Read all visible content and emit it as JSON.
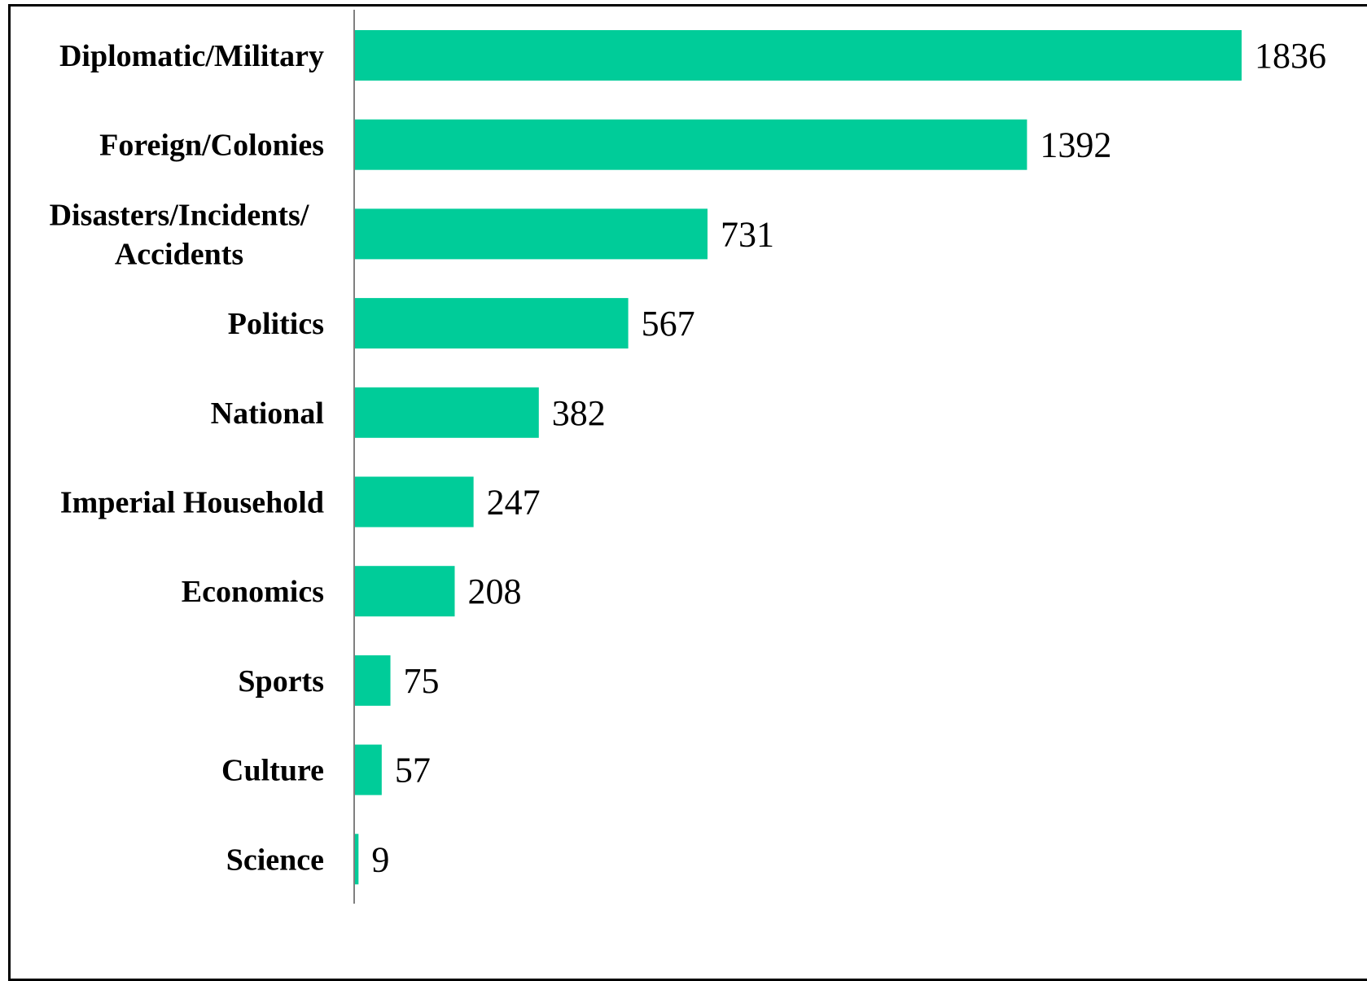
{
  "chart_data": {
    "type": "bar",
    "orientation": "horizontal",
    "categories": [
      "Diplomatic/Military",
      "Foreign/Colonies",
      "Disasters/Incidents/ Accidents",
      "Politics",
      "National",
      "Imperial Household",
      "Economics",
      "Sports",
      "Culture",
      "Science"
    ],
    "category_lines": [
      [
        "Diplomatic/Military"
      ],
      [
        "Foreign/Colonies"
      ],
      [
        "Disasters/Incidents/",
        "Accidents"
      ],
      [
        "Politics"
      ],
      [
        "National"
      ],
      [
        "Imperial Household"
      ],
      [
        "Economics"
      ],
      [
        "Sports"
      ],
      [
        "Culture"
      ],
      [
        "Science"
      ]
    ],
    "values": [
      1836,
      1392,
      731,
      567,
      382,
      247,
      208,
      75,
      57,
      9
    ],
    "data_labels": [
      "1836",
      "1392",
      "731",
      "567",
      "382",
      "247",
      "208",
      "75",
      "57",
      "9"
    ],
    "title": "",
    "xlabel": "",
    "ylabel": "",
    "xlim": [
      0,
      1836
    ],
    "grid": false,
    "legend": "none",
    "bar_color": "#00CC99",
    "axis_color": "#808080"
  }
}
